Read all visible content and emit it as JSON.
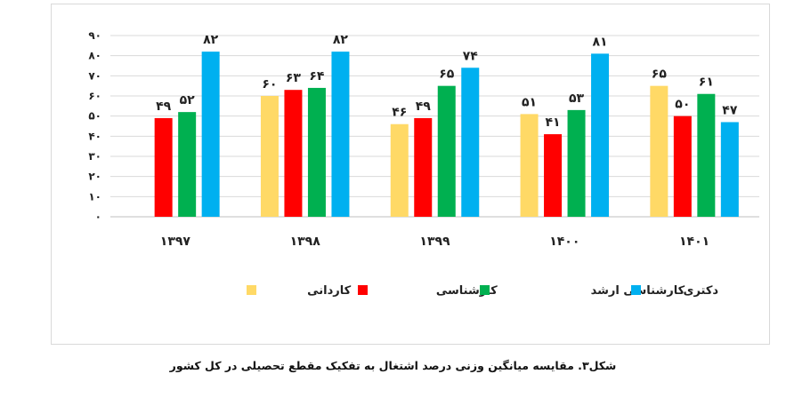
{
  "chart_data": {
    "type": "bar",
    "categories": [
      "۱۳۹۷",
      "۱۳۹۸",
      "۱۳۹۹",
      "۱۴۰۰",
      "۱۴۰۱"
    ],
    "series": [
      {
        "name": "کاردانی",
        "color": "#ffd966",
        "values": [
          null,
          60,
          46,
          51,
          65
        ],
        "labels": [
          "",
          "۶۰",
          "۴۶",
          "۵۱",
          "۶۵"
        ]
      },
      {
        "name": "کارشناسی",
        "color": "#ff0000",
        "values": [
          49,
          63,
          49,
          41,
          50
        ],
        "labels": [
          "۴۹",
          "۶۳",
          "۴۹",
          "۴۱",
          "۵۰"
        ]
      },
      {
        "name": "کارشناسی ارشد",
        "color": "#00b050",
        "values": [
          52,
          64,
          65,
          53,
          61
        ],
        "labels": [
          "۵۲",
          "۶۴",
          "۶۵",
          "۵۳",
          "۶۱"
        ]
      },
      {
        "name": "دکتری",
        "color": "#00b0f0",
        "values": [
          82,
          82,
          74,
          81,
          47
        ],
        "labels": [
          "۸۲",
          "۸۲",
          "۷۴",
          "۸۱",
          "۴۷"
        ]
      }
    ],
    "ylim": [
      0,
      90
    ],
    "yticks": [
      0,
      10,
      20,
      30,
      40,
      50,
      60,
      70,
      80,
      90
    ],
    "ytick_labels": [
      "۰",
      "۱۰",
      "۲۰",
      "۳۰",
      "۴۰",
      "۵۰",
      "۶۰",
      "۷۰",
      "۸۰",
      "۹۰"
    ],
    "grid": true,
    "legend_position": "bottom"
  },
  "caption": "شکل۳. مقایسه میانگین وزنی درصد اشتغال به تفکیک مقطع تحصیلی در کل کشور"
}
